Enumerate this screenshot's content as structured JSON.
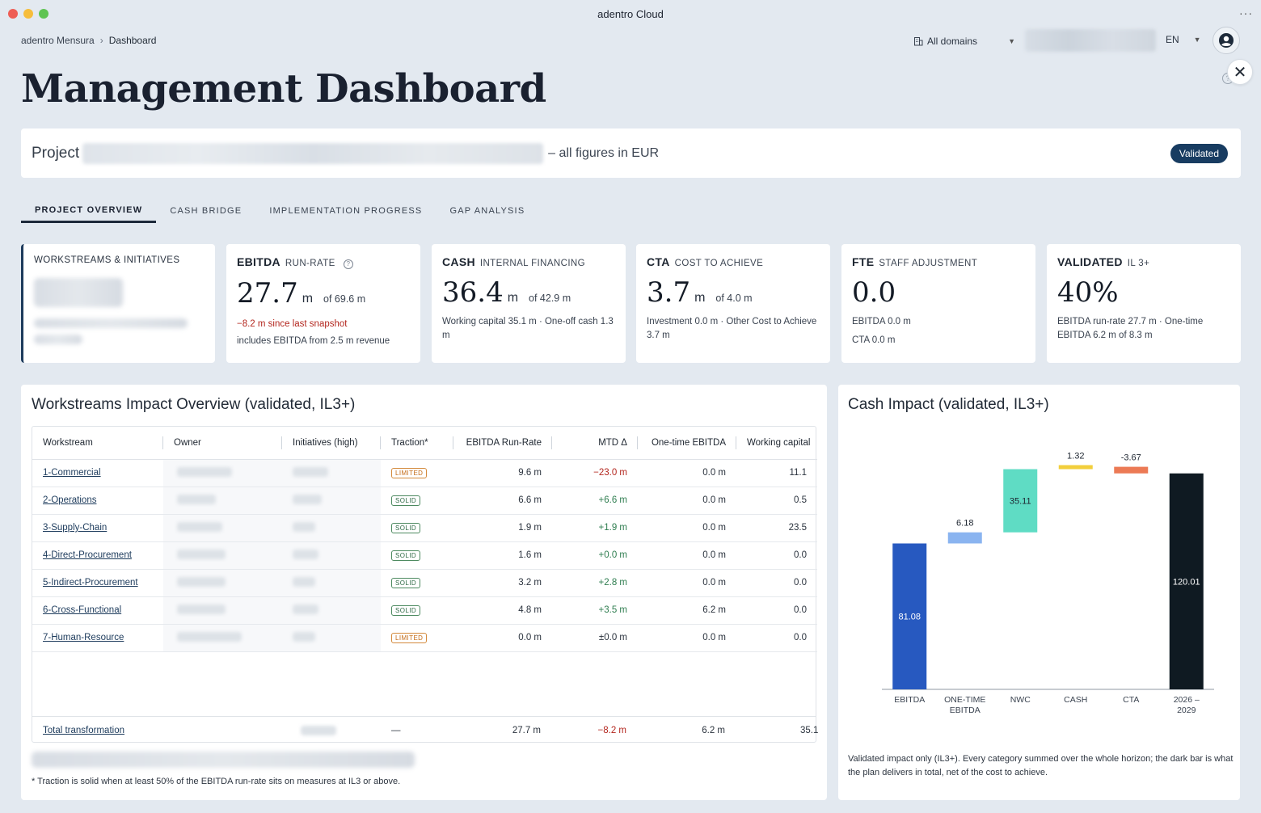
{
  "window": {
    "title": "adentro Cloud"
  },
  "breadcrumb": {
    "root": "adentro Mensura",
    "separator": "›",
    "current": "Dashboard"
  },
  "topbar": {
    "domains": "All domains",
    "language": "EN"
  },
  "page": {
    "title": "Management Dashboard"
  },
  "project": {
    "prefix": "Project",
    "suffix": "– all figures in EUR",
    "status": "Validated"
  },
  "tabs": [
    {
      "label": "PROJECT OVERVIEW"
    },
    {
      "label": "CASH BRIDGE"
    },
    {
      "label": "IMPLEMENTATION PROGRESS"
    },
    {
      "label": "GAP ANALYSIS"
    }
  ],
  "kpis": {
    "workstreams": {
      "title": "WORKSTREAMS & INITIATIVES"
    },
    "ebitda": {
      "title": "EBITDA",
      "subtitle": "RUN-RATE",
      "value": "27.7",
      "unit": "m",
      "of": "of 69.6 m",
      "delta": "−8.2 m since last snapshot",
      "note": "includes EBITDA from 2.5 m revenue"
    },
    "cash": {
      "title": "CASH",
      "subtitle": "INTERNAL FINANCING",
      "value": "36.4",
      "unit": "m",
      "of": "of 42.9 m",
      "note": "Working capital 35.1 m · One-off cash 1.3 m"
    },
    "cta": {
      "title": "CTA",
      "subtitle": "COST TO ACHIEVE",
      "value": "3.7",
      "unit": "m",
      "of": "of 4.0 m",
      "note": "Investment 0.0 m · Other Cost to Achieve 3.7 m"
    },
    "fte": {
      "title": "FTE",
      "subtitle": "STAFF ADJUSTMENT",
      "value": "0.0",
      "line1": "EBITDA 0.0 m",
      "line2": "CTA 0.0 m"
    },
    "validated": {
      "title": "VALIDATED",
      "subtitle": "IL 3+",
      "value": "40%",
      "note": "EBITDA run-rate 27.7 m · One-time EBITDA 6.2 m of 8.3 m"
    }
  },
  "workstreams_panel": {
    "title": "Workstreams Impact Overview (validated, IL3+)",
    "columns": [
      "Workstream",
      "Owner",
      "Initiatives (high)",
      "Traction*",
      "EBITDA Run-Rate",
      "MTD Δ",
      "One-time EBITDA",
      "Working capital"
    ],
    "rows": [
      {
        "name": "1-Commercial",
        "traction": "LIMITED",
        "ebitda": "9.6 m",
        "mtd": "−23.0 m",
        "one_time": "0.0 m",
        "wc": "11.1"
      },
      {
        "name": "2-Operations",
        "traction": "SOLID",
        "ebitda": "6.6 m",
        "mtd": "+6.6 m",
        "one_time": "0.0 m",
        "wc": "0.5"
      },
      {
        "name": "3-Supply-Chain",
        "traction": "SOLID",
        "ebitda": "1.9 m",
        "mtd": "+1.9 m",
        "one_time": "0.0 m",
        "wc": "23.5"
      },
      {
        "name": "4-Direct-Procurement",
        "traction": "SOLID",
        "ebitda": "1.6 m",
        "mtd": "+0.0 m",
        "one_time": "0.0 m",
        "wc": "0.0"
      },
      {
        "name": "5-Indirect-Procurement",
        "traction": "SOLID",
        "ebitda": "3.2 m",
        "mtd": "+2.8 m",
        "one_time": "0.0 m",
        "wc": "0.0"
      },
      {
        "name": "6-Cross-Functional",
        "traction": "SOLID",
        "ebitda": "4.8 m",
        "mtd": "+3.5 m",
        "one_time": "6.2 m",
        "wc": "0.0"
      },
      {
        "name": "7-Human-Resource",
        "traction": "LIMITED",
        "ebitda": "0.0 m",
        "mtd": "±0.0 m",
        "one_time": "0.0 m",
        "wc": "0.0"
      }
    ],
    "total": {
      "name": "Total transformation",
      "traction": "—",
      "ebitda": "27.7 m",
      "mtd": "−8.2 m",
      "one_time": "6.2 m",
      "wc": "35.1"
    },
    "footnote": "* Traction is solid when at least 50% of the EBITDA run-rate sits on measures at IL3 or above."
  },
  "cash_panel": {
    "title": "Cash Impact (validated, IL3+)",
    "footnote": "Validated impact only (IL3+). Every category summed over the whole horizon; the dark bar is what the plan delivers in total, net of the cost to achieve."
  },
  "chart_data": {
    "type": "bar",
    "subtype": "waterfall",
    "title": "Cash Impact (validated, IL3+)",
    "categories": [
      "EBITDA",
      "ONE-TIME EBITDA",
      "NWC",
      "CASH",
      "CTA",
      "2026 – 2029"
    ],
    "values": [
      81.08,
      6.18,
      35.11,
      1.32,
      -3.67,
      120.01
    ],
    "labels": [
      "81.08",
      "6.18",
      "35.11",
      "1.32",
      "-3.67",
      "120.01"
    ],
    "total_index": 5,
    "colors": [
      "#2759c0",
      "#8ab4f0",
      "#5fdcc4",
      "#f2cf3c",
      "#ec7a55",
      "#0f1a22"
    ],
    "ylim": [
      0,
      128
    ],
    "grid": false
  }
}
